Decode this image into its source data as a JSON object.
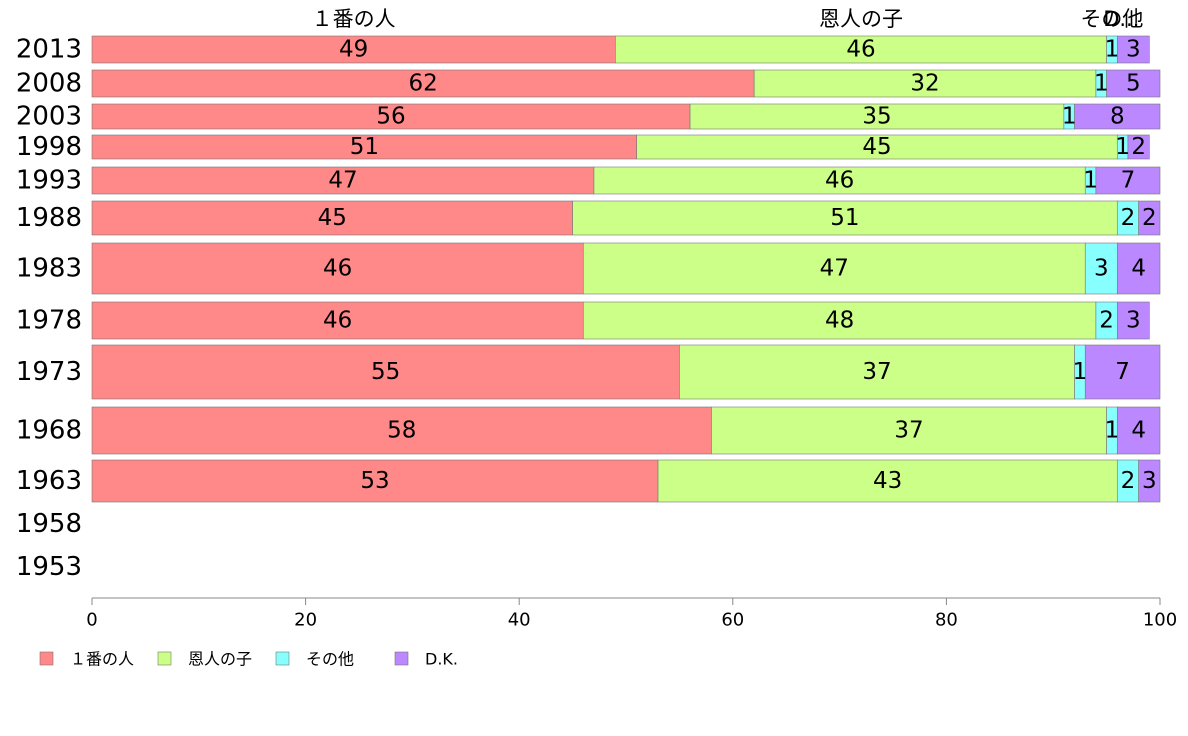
{
  "chart_data": {
    "type": "bar",
    "orientation": "horizontal",
    "stacked": true,
    "title": "",
    "xlabel": "",
    "ylabel": "",
    "xlim": [
      0,
      100
    ],
    "x_ticks": [
      0,
      20,
      40,
      60,
      80,
      100
    ],
    "grid": false,
    "legend_position": "bottom-left",
    "categories": [
      "2013",
      "2008",
      "2003",
      "1998",
      "1993",
      "1988",
      "1983",
      "1978",
      "1973",
      "1968",
      "1963",
      "1958",
      "1953"
    ],
    "series": [
      {
        "name": "１番の人",
        "color": "#ff8888",
        "values": [
          49,
          62,
          56,
          51,
          47,
          45,
          46,
          46,
          55,
          58,
          53,
          null,
          null
        ]
      },
      {
        "name": "恩人の子",
        "color": "#ccff88",
        "values": [
          46,
          32,
          35,
          45,
          46,
          51,
          47,
          48,
          37,
          37,
          43,
          null,
          null
        ]
      },
      {
        "name": "その他",
        "color": "#88ffff",
        "values": [
          1,
          1,
          1,
          1,
          1,
          2,
          3,
          2,
          1,
          1,
          2,
          null,
          null
        ]
      },
      {
        "name": "D.K.",
        "color": "#bb88ff",
        "values": [
          3,
          5,
          8,
          2,
          7,
          2,
          4,
          3,
          7,
          4,
          3,
          null,
          null
        ]
      }
    ],
    "top_labels": [
      "１番の人",
      "恩人の子",
      "その他",
      "D..."
    ]
  }
}
